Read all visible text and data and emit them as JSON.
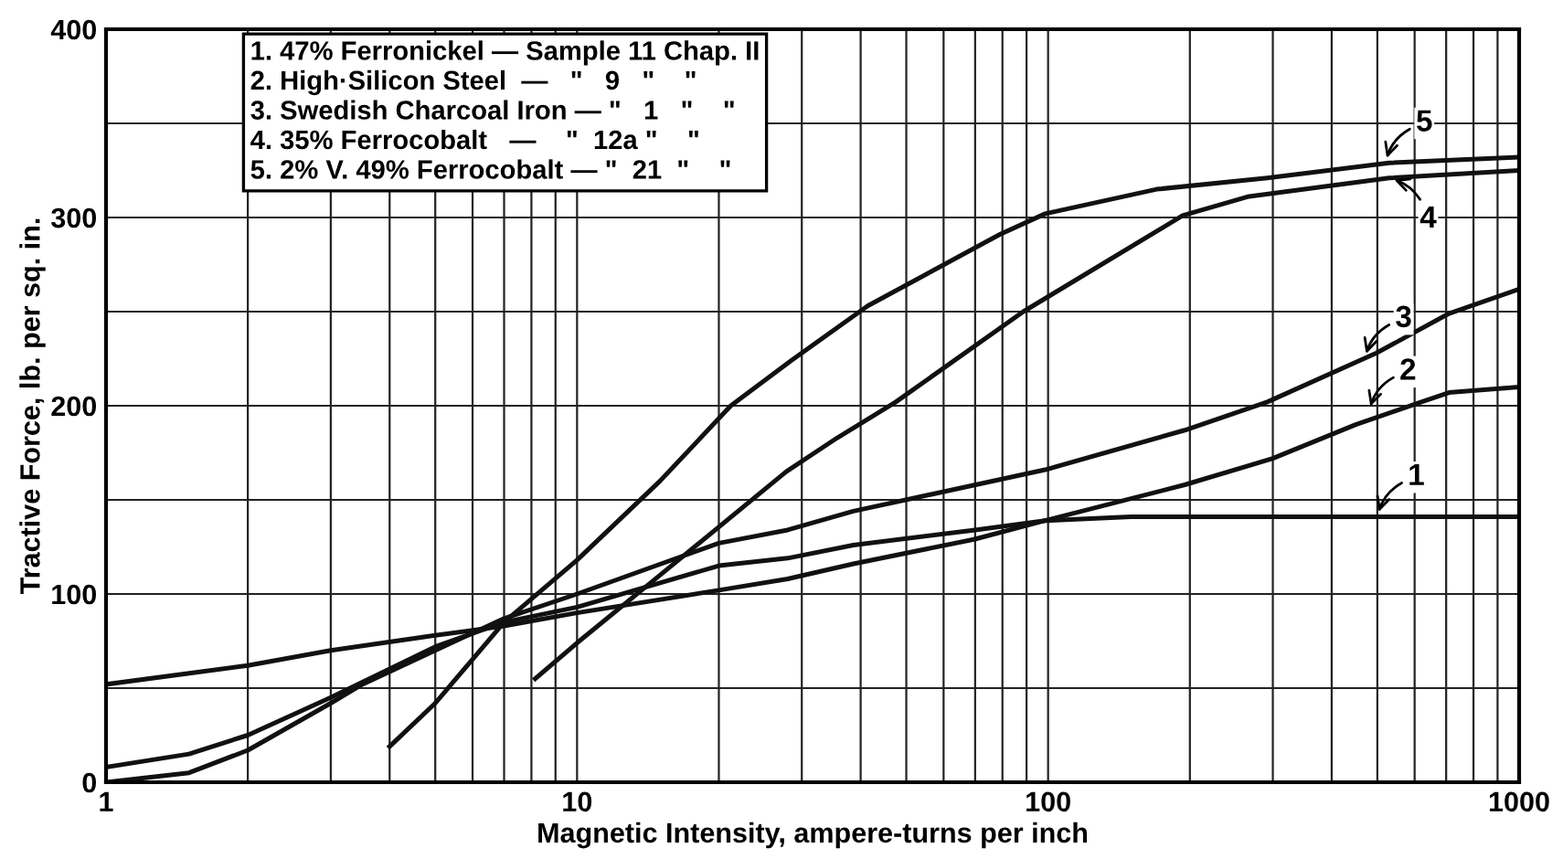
{
  "chart_data": {
    "type": "line",
    "xlabel": "Magnetic Intensity, ampere-turns per inch",
    "ylabel": "Tractive Force, lb. per sq. in.",
    "log": "x",
    "xlim": [
      1,
      1000
    ],
    "xticks": [
      1,
      10,
      100,
      1000
    ],
    "ylim": [
      0,
      400
    ],
    "yticks": [
      0,
      {
        "value": 50,
        "label": null
      },
      100,
      {
        "value": 150,
        "label": null
      },
      200,
      {
        "value": 250,
        "label": null
      },
      300,
      {
        "value": 350,
        "label": null
      },
      400
    ],
    "grid": true,
    "legend": false,
    "marker": "none",
    "line_style": "solid",
    "series": [
      {
        "color": "#111111",
        "x": [
          1,
          1.5,
          2,
          3,
          5,
          7,
          10,
          20,
          28,
          38.6,
          70,
          98.6,
          150,
          300,
          1000
        ],
        "values": [
          8,
          15,
          25,
          45,
          72,
          85,
          93,
          115,
          119,
          126,
          134,
          139,
          141,
          141,
          141
        ]
      },
      {
        "color": "#111111",
        "x": [
          1,
          2,
          3,
          5,
          7,
          10,
          20,
          28,
          38.6,
          69.6,
          98.6,
          195,
          300,
          450,
          620,
          710,
          1000
        ],
        "values": [
          52,
          62,
          70,
          78,
          83,
          90,
          102,
          108,
          116,
          129,
          139,
          158,
          172,
          190,
          202,
          207,
          210
        ]
      },
      {
        "color": "#111111",
        "x": [
          1,
          1.5,
          2,
          3,
          3.5,
          5,
          7,
          10,
          20,
          28,
          38.6,
          98.6,
          195,
          292,
          498,
          710,
          1000
        ],
        "values": [
          0,
          5,
          17,
          42,
          52,
          70,
          87,
          100,
          127,
          134,
          144,
          166,
          187,
          202,
          228,
          249,
          262
        ]
      },
      {
        "color": "#111111",
        "x": [
          8.15,
          10,
          15,
          27.8,
          35.7,
          47.5,
          88.6,
          193,
          265,
          530,
          1000
        ],
        "values": [
          55,
          74,
          110,
          165,
          183,
          202,
          250,
          301,
          311,
          321,
          325
        ]
      },
      {
        "color": "#111111",
        "x": [
          4,
          5,
          7,
          10,
          15,
          21.2,
          28.5,
          41.4,
          79,
          98.6,
          170,
          292,
          530,
          1000
        ],
        "values": [
          19,
          42,
          85,
          118,
          160,
          200,
          224,
          253,
          291,
          302,
          315,
          321,
          329,
          332
        ]
      }
    ],
    "annotations": [
      "1. 47% Ferronickel — Sample 11 Chap. II",
      "2. High·Silicon Steel  —   \"   9   \"    \"",
      "3. Swedish Charcoal Iron — \"   1   \"    \"",
      "4. 35% Ferrocobalt   —    \"  12a \"    \"",
      "5. 2% V. 49% Ferrocobalt — \"  21  \"    \"",
      {
        "text": "1",
        "x": 500,
        "y": 141
      },
      {
        "text": "2",
        "x": 480,
        "y": 197
      },
      {
        "text": "3",
        "x": 470,
        "y": 225
      },
      {
        "text": "4",
        "x": 530,
        "y": 321
      },
      {
        "text": "5",
        "x": 520,
        "y": 329
      }
    ]
  }
}
